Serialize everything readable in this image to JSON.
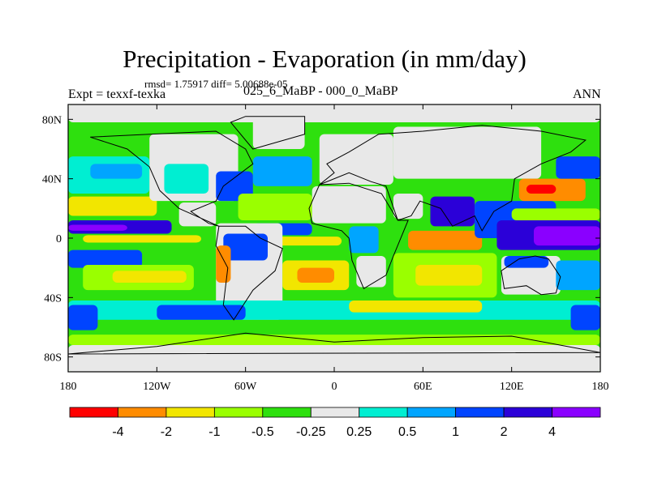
{
  "chart_data": {
    "type": "heatmap",
    "title": "Precipitation - Evaporation (in mm/day)",
    "stats": "rmsd= 1.75917  diff= 5.00688e-05",
    "left_label": "Expt = texxf-texka",
    "center_label": "025_6_MaBP - 000_0_MaBP",
    "right_label": "ANN",
    "x_range": [
      -180,
      180
    ],
    "y_range": [
      -90,
      90
    ],
    "x_ticks": [
      {
        "value": -180,
        "label": "180"
      },
      {
        "value": -120,
        "label": "120W"
      },
      {
        "value": -60,
        "label": "60W"
      },
      {
        "value": 0,
        "label": "0"
      },
      {
        "value": 60,
        "label": "60E"
      },
      {
        "value": 120,
        "label": "120E"
      },
      {
        "value": 180,
        "label": "180"
      }
    ],
    "y_ticks": [
      {
        "value": 80,
        "label": "80N"
      },
      {
        "value": 40,
        "label": "40N"
      },
      {
        "value": 0,
        "label": "0"
      },
      {
        "value": -40,
        "label": "40S"
      },
      {
        "value": -80,
        "label": "80S"
      }
    ],
    "colorbar": {
      "colors": [
        "#ff0000",
        "#ff8c00",
        "#f2e600",
        "#9aff00",
        "#2ee00e",
        "#e8e8e8",
        "#00eed2",
        "#00a5ff",
        "#0044ff",
        "#2b00d8",
        "#8a00ff"
      ],
      "labels": [
        "-4",
        "-2",
        "-1",
        "-0.5",
        "-0.25",
        "0.25",
        "0.5",
        "1",
        "2",
        "4"
      ]
    },
    "field_regions": [
      {
        "name": "background",
        "lon": [
          -180,
          180
        ],
        "lat": [
          -90,
          90
        ],
        "color": "#2ee00e"
      },
      {
        "name": "north-polar-land",
        "lon": [
          -180,
          180
        ],
        "lat": [
          78,
          90
        ],
        "color": "#e8e8e8"
      },
      {
        "name": "north-pacific-band",
        "lon": [
          -180,
          -125
        ],
        "lat": [
          30,
          55
        ],
        "color": "#00eed2"
      },
      {
        "name": "north-pacific-blue",
        "lon": [
          -165,
          -130
        ],
        "lat": [
          40,
          50
        ],
        "color": "#00a5ff"
      },
      {
        "name": "subtropical-pacific-n",
        "lon": [
          -180,
          -120
        ],
        "lat": [
          15,
          28
        ],
        "color": "#f2e600"
      },
      {
        "name": "itcz-pacific",
        "lon": [
          -180,
          -110
        ],
        "lat": [
          3,
          12
        ],
        "color": "#2b00d8"
      },
      {
        "name": "itcz-pacific-core",
        "lon": [
          -180,
          -140
        ],
        "lat": [
          5,
          9
        ],
        "color": "#8a00ff"
      },
      {
        "name": "equator-pacific-dry",
        "lon": [
          -170,
          -90
        ],
        "lat": [
          -3,
          2
        ],
        "color": "#f2e600"
      },
      {
        "name": "spcz-blue",
        "lon": [
          -180,
          -130
        ],
        "lat": [
          -20,
          -8
        ],
        "color": "#0044ff"
      },
      {
        "name": "south-pacific-dry",
        "lon": [
          -170,
          -95
        ],
        "lat": [
          -35,
          -18
        ],
        "color": "#9aff00"
      },
      {
        "name": "south-pacific-yellow",
        "lon": [
          -150,
          -100
        ],
        "lat": [
          -30,
          -22
        ],
        "color": "#f2e600"
      },
      {
        "name": "north-america",
        "lon": [
          -125,
          -65
        ],
        "lat": [
          25,
          70
        ],
        "color": "#e8e8e8"
      },
      {
        "name": "na-interior-green",
        "lon": [
          -115,
          -85
        ],
        "lat": [
          30,
          50
        ],
        "color": "#00eed2"
      },
      {
        "name": "central-america",
        "lon": [
          -105,
          -80
        ],
        "lat": [
          8,
          24
        ],
        "color": "#e8e8e8"
      },
      {
        "name": "gulf-atlantic-blue",
        "lon": [
          -80,
          -55
        ],
        "lat": [
          25,
          45
        ],
        "color": "#0044ff"
      },
      {
        "name": "north-atlantic-cyan",
        "lon": [
          -55,
          -15
        ],
        "lat": [
          35,
          55
        ],
        "color": "#00a5ff"
      },
      {
        "name": "greenland",
        "lon": [
          -55,
          -20
        ],
        "lat": [
          60,
          82
        ],
        "color": "#e8e8e8"
      },
      {
        "name": "atlantic-subtropic-n",
        "lon": [
          -65,
          -15
        ],
        "lat": [
          12,
          30
        ],
        "color": "#9aff00"
      },
      {
        "name": "atlantic-itcz",
        "lon": [
          -55,
          -15
        ],
        "lat": [
          2,
          10
        ],
        "color": "#0044ff"
      },
      {
        "name": "atlantic-eq-dry",
        "lon": [
          -40,
          5
        ],
        "lat": [
          -5,
          1
        ],
        "color": "#f2e600"
      },
      {
        "name": "south-america",
        "lon": [
          -80,
          -35
        ],
        "lat": [
          -55,
          10
        ],
        "color": "#e8e8e8"
      },
      {
        "name": "amazon-blue",
        "lon": [
          -75,
          -45
        ],
        "lat": [
          -15,
          3
        ],
        "color": "#0044ff"
      },
      {
        "name": "andes-dry",
        "lon": [
          -80,
          -70
        ],
        "lat": [
          -30,
          -5
        ],
        "color": "#ff8c00"
      },
      {
        "name": "south-atlantic-yellow",
        "lon": [
          -35,
          10
        ],
        "lat": [
          -35,
          -15
        ],
        "color": "#f2e600"
      },
      {
        "name": "south-atlantic-orange",
        "lon": [
          -25,
          0
        ],
        "lat": [
          -30,
          -20
        ],
        "color": "#ff8c00"
      },
      {
        "name": "europe",
        "lon": [
          -10,
          40
        ],
        "lat": [
          36,
          70
        ],
        "color": "#e8e8e8"
      },
      {
        "name": "north-africa",
        "lon": [
          -15,
          35
        ],
        "lat": [
          10,
          35
        ],
        "color": "#e8e8e8"
      },
      {
        "name": "central-africa-blue",
        "lon": [
          10,
          30
        ],
        "lat": [
          -10,
          8
        ],
        "color": "#00a5ff"
      },
      {
        "name": "southern-africa",
        "lon": [
          15,
          35
        ],
        "lat": [
          -33,
          -12
        ],
        "color": "#e8e8e8"
      },
      {
        "name": "asia",
        "lon": [
          40,
          140
        ],
        "lat": [
          40,
          75
        ],
        "color": "#e8e8e8"
      },
      {
        "name": "arabia",
        "lon": [
          40,
          60
        ],
        "lat": [
          13,
          30
        ],
        "color": "#e8e8e8"
      },
      {
        "name": "india-monsoon",
        "lon": [
          65,
          95
        ],
        "lat": [
          8,
          28
        ],
        "color": "#2b00d8"
      },
      {
        "name": "indian-ocean-eq",
        "lon": [
          50,
          100
        ],
        "lat": [
          -8,
          5
        ],
        "color": "#ff8c00"
      },
      {
        "name": "indian-ocean-south",
        "lon": [
          40,
          110
        ],
        "lat": [
          -40,
          -10
        ],
        "color": "#9aff00"
      },
      {
        "name": "indian-ocean-yellow",
        "lon": [
          55,
          100
        ],
        "lat": [
          -32,
          -18
        ],
        "color": "#f2e600"
      },
      {
        "name": "se-asia-blue",
        "lon": [
          95,
          150
        ],
        "lat": [
          0,
          25
        ],
        "color": "#0044ff"
      },
      {
        "name": "warm-pool",
        "lon": [
          110,
          180
        ],
        "lat": [
          -8,
          12
        ],
        "color": "#2b00d8"
      },
      {
        "name": "west-pacific-violet",
        "lon": [
          135,
          180
        ],
        "lat": [
          -5,
          8
        ],
        "color": "#8a00ff"
      },
      {
        "name": "nw-pacific-orange",
        "lon": [
          125,
          170
        ],
        "lat": [
          25,
          40
        ],
        "color": "#ff8c00"
      },
      {
        "name": "kuroshio-red",
        "lon": [
          130,
          150
        ],
        "lat": [
          30,
          36
        ],
        "color": "#ff0000"
      },
      {
        "name": "nw-pacific-blue",
        "lon": [
          150,
          180
        ],
        "lat": [
          40,
          55
        ],
        "color": "#0044ff"
      },
      {
        "name": "north-pacific-itcz-w",
        "lon": [
          120,
          180
        ],
        "lat": [
          12,
          20
        ],
        "color": "#9aff00"
      },
      {
        "name": "australia",
        "lon": [
          113,
          153
        ],
        "lat": [
          -38,
          -12
        ],
        "color": "#e8e8e8"
      },
      {
        "name": "aus-north-blue",
        "lon": [
          115,
          145
        ],
        "lat": [
          -20,
          -12
        ],
        "color": "#0044ff"
      },
      {
        "name": "south-pacific-w",
        "lon": [
          150,
          180
        ],
        "lat": [
          -35,
          -15
        ],
        "color": "#00a5ff"
      },
      {
        "name": "southern-ocean-cyan",
        "lon": [
          -180,
          180
        ],
        "lat": [
          -55,
          -42
        ],
        "color": "#00eed2"
      },
      {
        "name": "southern-ocean-blue-w",
        "lon": [
          -120,
          -60
        ],
        "lat": [
          -55,
          -45
        ],
        "color": "#0044ff"
      },
      {
        "name": "southern-ocean-yellow",
        "lon": [
          10,
          100
        ],
        "lat": [
          -50,
          -42
        ],
        "color": "#f2e600"
      },
      {
        "name": "southern-ocean-green",
        "lon": [
          -180,
          180
        ],
        "lat": [
          -65,
          -55
        ],
        "color": "#2ee00e"
      },
      {
        "name": "antarctic-margin",
        "lon": [
          -180,
          180
        ],
        "lat": [
          -72,
          -65
        ],
        "color": "#9aff00"
      },
      {
        "name": "antarctica",
        "lon": [
          -180,
          180
        ],
        "lat": [
          -90,
          -72
        ],
        "color": "#e8e8e8"
      },
      {
        "name": "sh-west-blue",
        "lon": [
          -180,
          -160
        ],
        "lat": [
          -62,
          -45
        ],
        "color": "#0044ff"
      },
      {
        "name": "sh-east-blue",
        "lon": [
          160,
          180
        ],
        "lat": [
          -62,
          -45
        ],
        "color": "#0044ff"
      }
    ]
  }
}
